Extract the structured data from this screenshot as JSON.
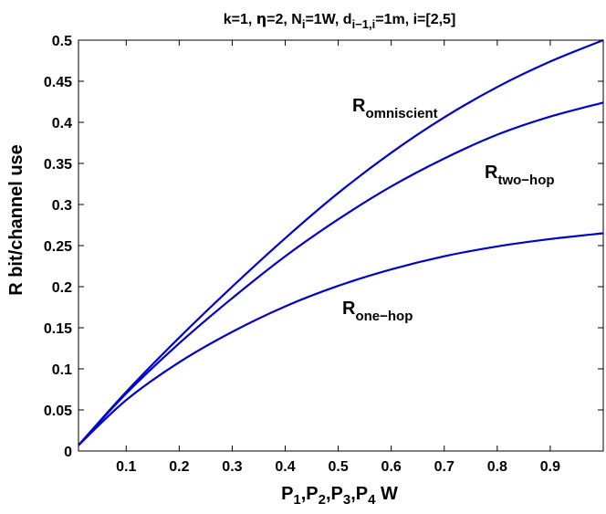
{
  "chart_data": {
    "type": "line",
    "title_parts": [
      {
        "t": "k=1, "
      },
      {
        "t": "η",
        "sym": true
      },
      {
        "t": "=2, N"
      },
      {
        "t": "i",
        "sub": true
      },
      {
        "t": "=1W, d"
      },
      {
        "t": "i−1,i",
        "sub": true
      },
      {
        "t": "=1m, i=[2,5]"
      }
    ],
    "xlabel_parts": [
      {
        "t": "P"
      },
      {
        "t": "1",
        "sub": true
      },
      {
        "t": ",P"
      },
      {
        "t": "2",
        "sub": true
      },
      {
        "t": ",P"
      },
      {
        "t": "3",
        "sub": true
      },
      {
        "t": ",P"
      },
      {
        "t": "4",
        "sub": true
      },
      {
        "t": " W"
      }
    ],
    "ylabel": "R bit/channel use",
    "xlim": [
      0.01,
      1.0
    ],
    "ylim": [
      0,
      0.5
    ],
    "xticks": [
      "0.1",
      "0.2",
      "0.3",
      "0.4",
      "0.5",
      "0.6",
      "0.7",
      "0.8",
      "0.9"
    ],
    "yticks": [
      "0",
      "0.05",
      "0.1",
      "0.15",
      "0.2",
      "0.25",
      "0.3",
      "0.35",
      "0.4",
      "0.45",
      "0.5"
    ],
    "grid": false,
    "line_color": "#0000cc",
    "series": [
      {
        "label_main": "R",
        "label_sub": "omniscient",
        "x": [
          0.01,
          0.1,
          0.2,
          0.3,
          0.4,
          0.5,
          0.6,
          0.7,
          0.8,
          0.9,
          1.0
        ],
        "y": [
          0.007,
          0.072,
          0.138,
          0.2,
          0.259,
          0.314,
          0.363,
          0.406,
          0.443,
          0.474,
          0.5
        ]
      },
      {
        "label_main": "R",
        "label_sub": "two−hop",
        "x": [
          0.01,
          0.1,
          0.2,
          0.3,
          0.4,
          0.5,
          0.6,
          0.7,
          0.8,
          0.9,
          1.0
        ],
        "y": [
          0.007,
          0.07,
          0.131,
          0.186,
          0.237,
          0.282,
          0.322,
          0.356,
          0.385,
          0.407,
          0.424
        ]
      },
      {
        "label_main": "R",
        "label_sub": "one−hop",
        "x": [
          0.01,
          0.1,
          0.2,
          0.3,
          0.4,
          0.5,
          0.6,
          0.7,
          0.8,
          0.9,
          1.0
        ],
        "y": [
          0.007,
          0.062,
          0.108,
          0.145,
          0.176,
          0.201,
          0.221,
          0.237,
          0.249,
          0.258,
          0.265
        ]
      }
    ]
  }
}
